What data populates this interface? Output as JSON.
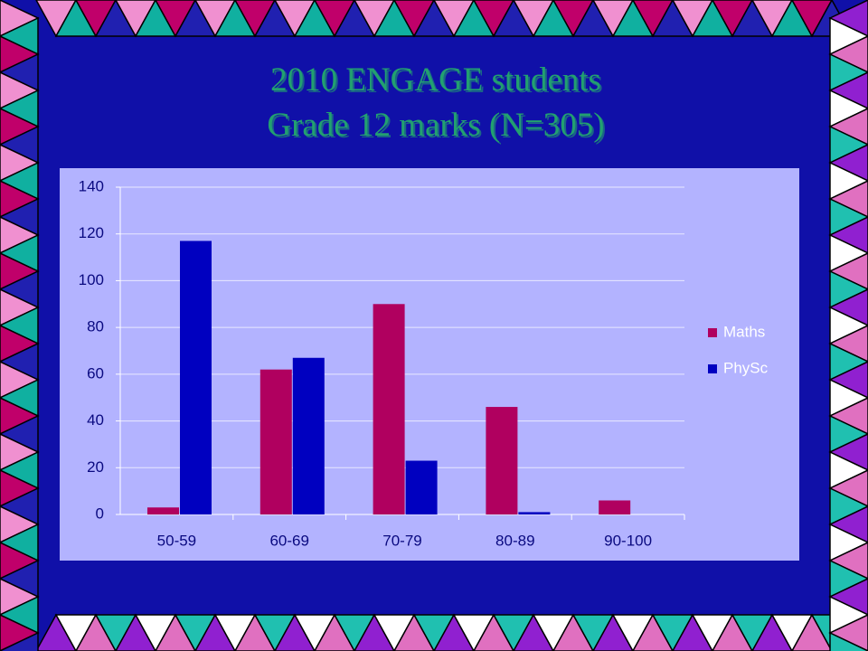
{
  "chart_data": {
    "type": "bar",
    "title": [
      "2010 ENGAGE students",
      "Grade 12 marks (N=305)"
    ],
    "categories": [
      "50-59",
      "60-69",
      "70-79",
      "80-89",
      "90-100"
    ],
    "series": [
      {
        "name": "Maths",
        "color": "#b0005f",
        "values": [
          3,
          62,
          90,
          46,
          6
        ]
      },
      {
        "name": "PhySc",
        "color": "#0000c0",
        "values": [
          117,
          67,
          23,
          1,
          0
        ]
      }
    ],
    "ylim": [
      0,
      140
    ],
    "yticks": [
      0,
      20,
      40,
      60,
      80,
      100,
      120,
      140
    ],
    "grid": true,
    "legend": "right"
  }
}
